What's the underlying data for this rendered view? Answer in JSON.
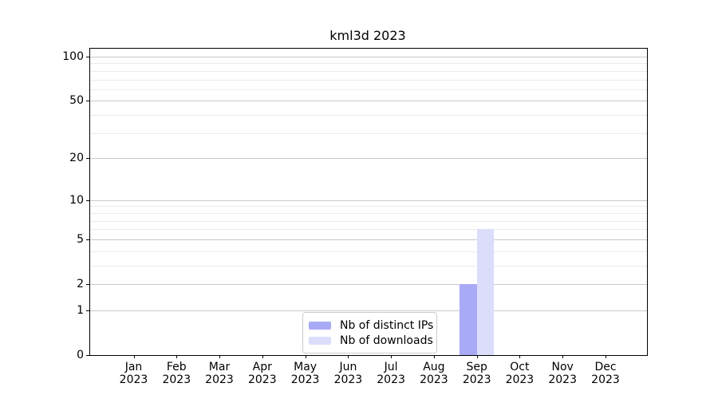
{
  "chart_data": {
    "type": "bar",
    "title": "kml3d 2023",
    "y_scale": "log1p",
    "ylim": [
      0,
      113
    ],
    "grid": true,
    "legend_position": "inside lower-center",
    "x_categories": [
      {
        "month": "Jan",
        "year": "2023"
      },
      {
        "month": "Feb",
        "year": "2023"
      },
      {
        "month": "Mar",
        "year": "2023"
      },
      {
        "month": "Apr",
        "year": "2023"
      },
      {
        "month": "May",
        "year": "2023"
      },
      {
        "month": "Jun",
        "year": "2023"
      },
      {
        "month": "Jul",
        "year": "2023"
      },
      {
        "month": "Aug",
        "year": "2023"
      },
      {
        "month": "Sep",
        "year": "2023"
      },
      {
        "month": "Oct",
        "year": "2023"
      },
      {
        "month": "Nov",
        "year": "2023"
      },
      {
        "month": "Dec",
        "year": "2023"
      }
    ],
    "y_ticks": [
      0,
      1,
      2,
      5,
      10,
      20,
      50,
      100
    ],
    "y_minor_gridlines": [
      1,
      2,
      3,
      4,
      5,
      6,
      7,
      8,
      9,
      10,
      20,
      30,
      40,
      50,
      60,
      70,
      80,
      90,
      100
    ],
    "series": [
      {
        "name": "Nb of distinct IPs",
        "color": "#a8aaf6",
        "values": [
          0,
          0,
          0,
          0,
          0,
          0,
          0,
          0,
          2,
          0,
          0,
          0
        ]
      },
      {
        "name": "Nb of downloads",
        "color": "#dcddfb",
        "values": [
          0,
          0,
          0,
          0,
          0,
          0,
          0,
          0,
          6,
          0,
          0,
          0
        ]
      }
    ],
    "colors": {
      "spine": "#000000",
      "grid_minor": "#ebebeb",
      "grid_major": "#c9c9c9",
      "background": "#ffffff"
    }
  }
}
